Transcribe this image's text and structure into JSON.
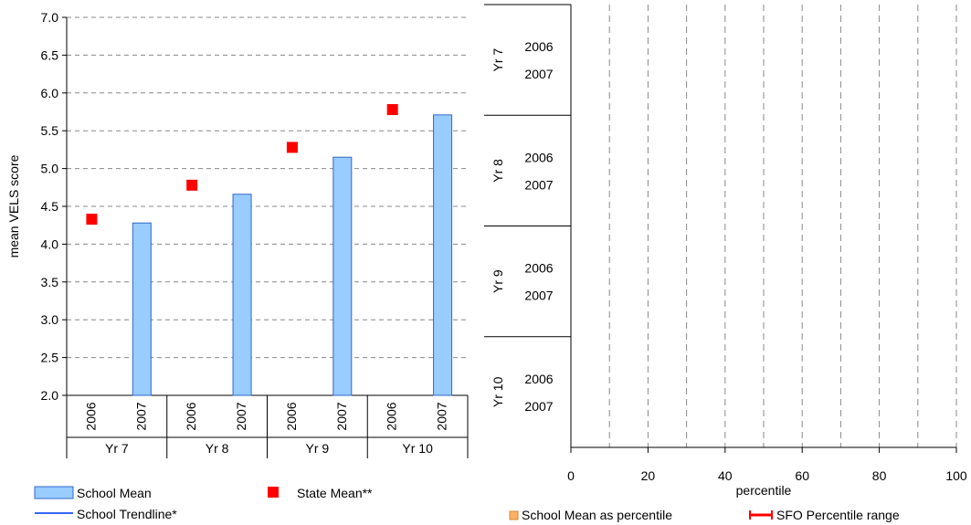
{
  "colors": {
    "bar_fill": "#99ccff",
    "bar_stroke": "#3366cc",
    "state_marker": "#ff0000",
    "trend_line": "#3366ff",
    "percentile_marker": "#ffb266",
    "sfo_range": "#ff0000",
    "grid": "#888888"
  },
  "chart_data": [
    {
      "type": "bar",
      "ylabel": "mean VELS score",
      "ylim": [
        2.0,
        7.0
      ],
      "yticks": [
        "2.0",
        "2.5",
        "3.0",
        "3.5",
        "4.0",
        "4.5",
        "5.0",
        "5.5",
        "6.0",
        "6.5",
        "7.0"
      ],
      "groups": [
        {
          "label": "Yr 7",
          "years": [
            "2006",
            "2007"
          ]
        },
        {
          "label": "Yr 8",
          "years": [
            "2006",
            "2007"
          ]
        },
        {
          "label": "Yr 9",
          "years": [
            "2006",
            "2007"
          ]
        },
        {
          "label": "Yr 10",
          "years": [
            "2006",
            "2007"
          ]
        }
      ],
      "series": [
        {
          "name": "School Mean",
          "kind": "bar",
          "values": [
            [
              null,
              4.28
            ],
            [
              null,
              4.66
            ],
            [
              null,
              5.15
            ],
            [
              null,
              5.71
            ]
          ]
        },
        {
          "name": "State Mean**",
          "kind": "marker",
          "values": [
            [
              4.33,
              null
            ],
            [
              4.78,
              null
            ],
            [
              5.28,
              null
            ],
            [
              5.78,
              null
            ]
          ]
        },
        {
          "name": "School Trendline*",
          "kind": "line",
          "values": []
        }
      ],
      "legend": [
        "School Mean",
        "State Mean**",
        "School Trendline*"
      ],
      "grid": true
    },
    {
      "type": "bar",
      "orientation": "horizontal",
      "xlabel": "percentile",
      "xlim": [
        0,
        100
      ],
      "xticks": [
        "0",
        "20",
        "40",
        "60",
        "80",
        "100"
      ],
      "gridlines": [
        10,
        20,
        30,
        40,
        50,
        60,
        70,
        80,
        90,
        100
      ],
      "groups": [
        {
          "label": "Yr 7",
          "years": [
            "2006",
            "2007"
          ]
        },
        {
          "label": "Yr 8",
          "years": [
            "2006",
            "2007"
          ]
        },
        {
          "label": "Yr 9",
          "years": [
            "2006",
            "2007"
          ]
        },
        {
          "label": "Yr 10",
          "years": [
            "2006",
            "2007"
          ]
        }
      ],
      "series": [
        {
          "name": "School Mean as percentile",
          "values": []
        },
        {
          "name": "SFO Percentile range",
          "values": []
        }
      ],
      "legend": [
        "School Mean as percentile",
        "SFO Percentile range"
      ]
    }
  ]
}
